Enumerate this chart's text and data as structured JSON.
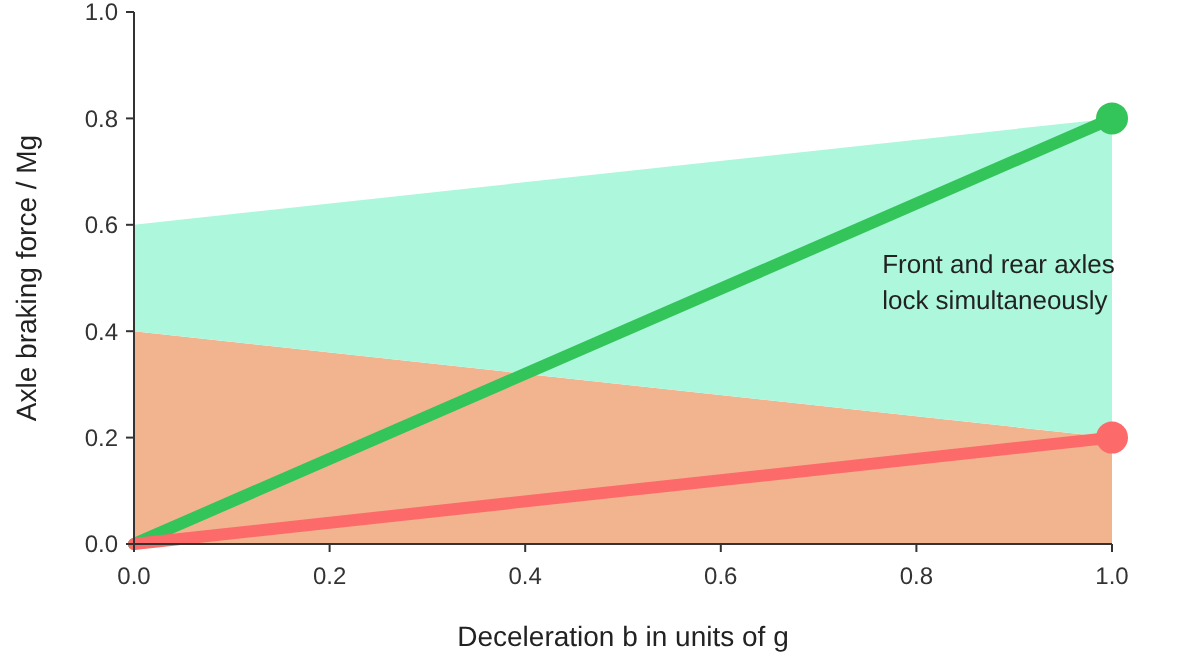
{
  "chart_data": {
    "type": "area",
    "xlabel": "Deceleration b in units of g",
    "ylabel": "Axle braking force / Mg",
    "x": [
      0,
      1
    ],
    "stacked": true,
    "series": [
      {
        "color": "#f2b48f",
        "values": [
          0.4,
          0.2
        ]
      },
      {
        "color": "#adf7dd",
        "values": [
          0.2,
          0.6
        ]
      },
      {
        "type": "line",
        "color": "#33c45a",
        "values": [
          0,
          0.8
        ]
      },
      {
        "type": "line",
        "color": "#fc6a6a",
        "values": [
          0,
          0.2
        ]
      },
      {
        "type": "scatter",
        "color": "#33c45a",
        "x": [
          1
        ],
        "values": [
          0.8
        ],
        "marker": "circle"
      },
      {
        "type": "scatter",
        "color": "#fc6a6a",
        "x": [
          1
        ],
        "values": [
          0.2
        ],
        "marker": "circle"
      }
    ],
    "annotations": [
      "Front and rear axles\nlock simultaneously"
    ],
    "xlim": [
      0,
      1
    ],
    "ylim": [
      0,
      1
    ],
    "xticks": [
      {
        "value": 0,
        "label": "0.0"
      },
      {
        "value": 0.2,
        "label": "0.2"
      },
      {
        "value": 0.4,
        "label": "0.4"
      },
      {
        "value": 0.6,
        "label": "0.6"
      },
      {
        "value": 0.8,
        "label": "0.8"
      },
      {
        "value": 1,
        "label": "1.0"
      }
    ],
    "yticks": [
      {
        "value": 0,
        "label": "0.0"
      },
      {
        "value": 0.2,
        "label": "0.2"
      },
      {
        "value": 0.4,
        "label": "0.4"
      },
      {
        "value": 0.6,
        "label": "0.6"
      },
      {
        "value": 0.8,
        "label": "0.8"
      },
      {
        "value": 1,
        "label": "1.0"
      }
    ],
    "grid": false
  }
}
